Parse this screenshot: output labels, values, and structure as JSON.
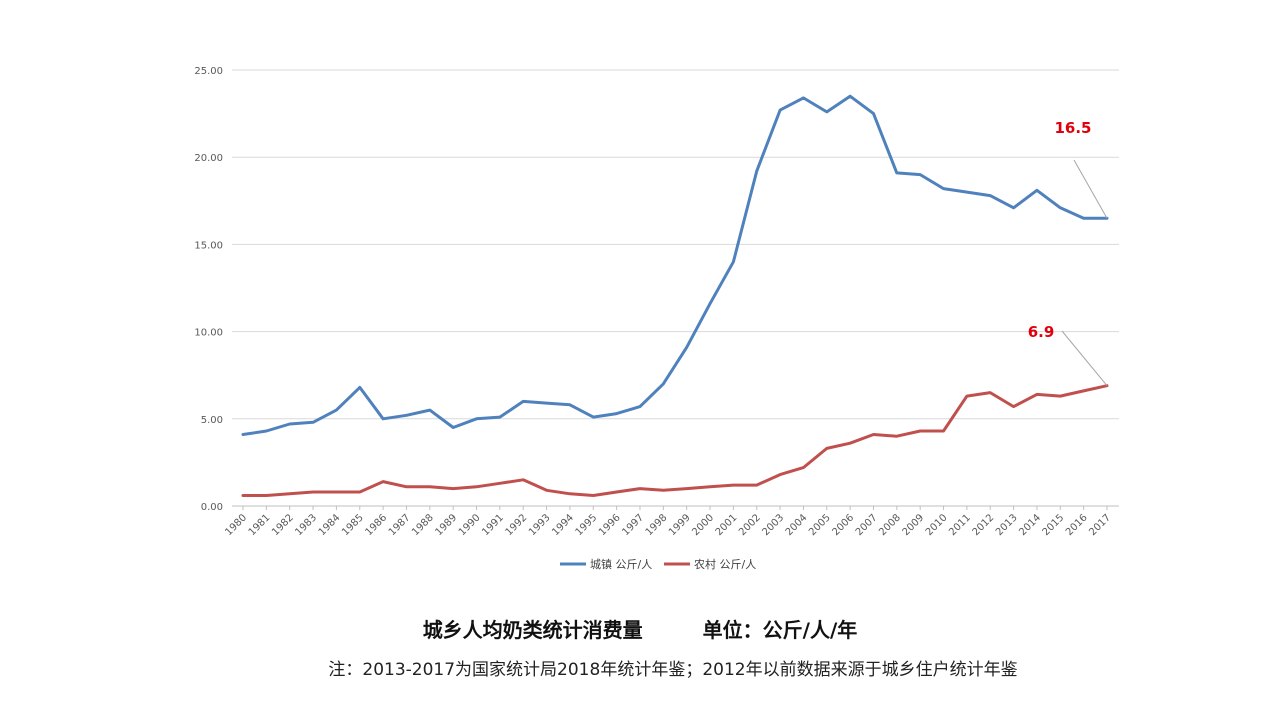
{
  "chart_data": {
    "type": "line",
    "title": "城乡人均奶类统计消费量　　　单位：公斤/人/年",
    "note": "注：2013-2017为国家统计局2018年统计年鉴；2012年以前数据来源于城乡住户统计年鉴",
    "xlabel": "",
    "ylabel": "",
    "ylim": [
      0,
      25
    ],
    "yticks": [
      "0.00",
      "5.00",
      "10.00",
      "15.00",
      "20.00",
      "25.00"
    ],
    "grid": true,
    "legend_position": "bottom",
    "x": [
      "1980",
      "1981",
      "1982",
      "1983",
      "1984",
      "1985",
      "1986",
      "1987",
      "1988",
      "1989",
      "1990",
      "1991",
      "1992",
      "1993",
      "1994",
      "1995",
      "1996",
      "1997",
      "1998",
      "1999",
      "2000",
      "2001",
      "2002",
      "2003",
      "2004",
      "2005",
      "2006",
      "2007",
      "2008",
      "2009",
      "2010",
      "2011",
      "2012",
      "2013",
      "2014",
      "2015",
      "2016",
      "2017"
    ],
    "series": [
      {
        "name": "城镇 公斤/人",
        "color": "#4f81bd",
        "values": [
          4.1,
          4.3,
          4.7,
          4.8,
          5.5,
          6.8,
          5.0,
          5.2,
          5.5,
          4.5,
          5.0,
          5.1,
          6.0,
          5.9,
          5.8,
          5.1,
          5.3,
          5.7,
          7.0,
          9.1,
          11.6,
          14.0,
          19.2,
          22.7,
          23.4,
          22.6,
          23.5,
          22.5,
          19.1,
          19.0,
          18.2,
          18.0,
          17.8,
          17.1,
          18.1,
          17.1,
          16.5,
          16.5
        ]
      },
      {
        "name": "农村 公斤/人",
        "color": "#c0504d",
        "values": [
          0.6,
          0.6,
          0.7,
          0.8,
          0.8,
          0.8,
          1.4,
          1.1,
          1.1,
          1.0,
          1.1,
          1.3,
          1.5,
          0.9,
          0.7,
          0.6,
          0.8,
          1.0,
          0.9,
          1.0,
          1.1,
          1.2,
          1.2,
          1.8,
          2.2,
          3.3,
          3.6,
          4.1,
          4.0,
          4.3,
          4.3,
          6.3,
          6.5,
          5.7,
          6.4,
          6.3,
          6.6,
          6.9
        ]
      }
    ],
    "annotations": [
      {
        "text": "16.5",
        "series": 0,
        "x": "2017"
      },
      {
        "text": "6.9",
        "series": 1,
        "x": "2017"
      }
    ]
  }
}
